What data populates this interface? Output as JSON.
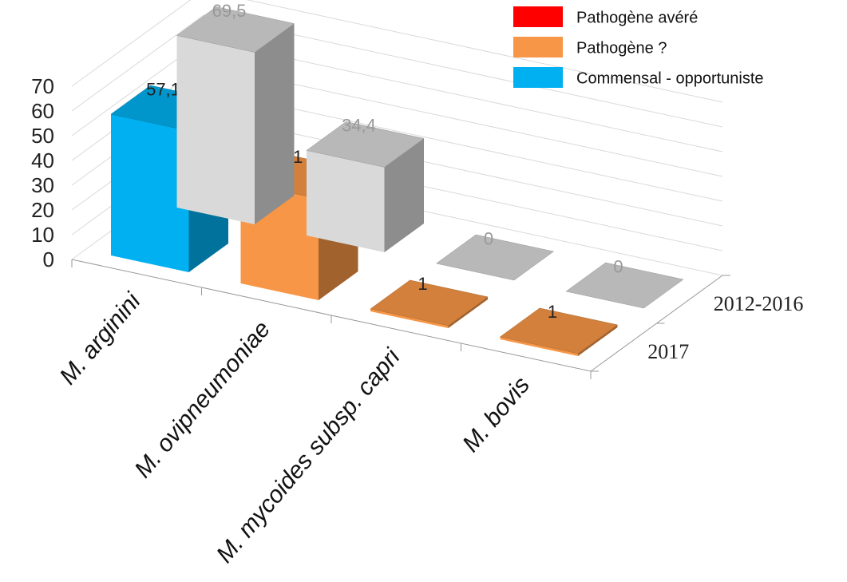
{
  "chart_data": {
    "type": "bar3d",
    "categories": [
      "M. arginini",
      "M. ovipneumoniae",
      "M. mycoides subsp. capri",
      "M. bovis"
    ],
    "series": [
      {
        "name": "2012-2016",
        "color": "#d9d9d9",
        "values": [
          69.5,
          34.4,
          0,
          0
        ],
        "value_labels": [
          "69,5",
          "34,4",
          "0",
          "0"
        ]
      },
      {
        "name": "2017",
        "colors": [
          "#00b0f0",
          "#f79646",
          "#f79646",
          "#f79646"
        ],
        "values": [
          57.1,
          41,
          1,
          1
        ],
        "value_labels": [
          "57,1",
          "41",
          "1",
          "1"
        ]
      }
    ],
    "ylim": [
      0,
      70
    ],
    "yticks": [
      0,
      10,
      20,
      30,
      40,
      50,
      60,
      70
    ],
    "grid": true,
    "legend": [
      {
        "label": "Pathogène avéré",
        "color": "#ff0000"
      },
      {
        "label": "Pathogène ?",
        "color": "#f79646"
      },
      {
        "label": "Commensal - opportuniste",
        "color": "#00b0f0"
      }
    ],
    "legend_position": "top-right"
  }
}
